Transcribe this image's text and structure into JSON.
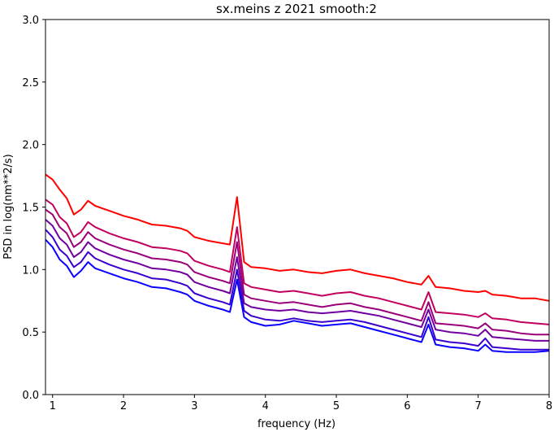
{
  "chart_data": {
    "type": "line",
    "title": "sx.meins z 2021 smooth:2",
    "xlabel": "frequency (Hz)",
    "ylabel": "PSD in log(nm**2/s)",
    "xlim": [
      0.9,
      8.0
    ],
    "ylim": [
      0.0,
      3.0
    ],
    "x_ticks": [
      1,
      2,
      3,
      4,
      5,
      6,
      7,
      8
    ],
    "y_ticks": [
      0.0,
      0.5,
      1.0,
      1.5,
      2.0,
      2.5,
      3.0
    ],
    "x_tick_labels": [
      "1",
      "2",
      "3",
      "4",
      "5",
      "6",
      "7",
      "8"
    ],
    "y_tick_labels": [
      "0.0",
      "0.5",
      "1.0",
      "1.5",
      "2.0",
      "2.5",
      "3.0"
    ],
    "grid": false,
    "legend": null,
    "x": [
      0.9,
      1.0,
      1.1,
      1.2,
      1.3,
      1.4,
      1.5,
      1.6,
      1.8,
      2.0,
      2.2,
      2.4,
      2.6,
      2.8,
      2.9,
      3.0,
      3.2,
      3.4,
      3.5,
      3.6,
      3.7,
      3.8,
      4.0,
      4.2,
      4.4,
      4.6,
      4.8,
      5.0,
      5.2,
      5.4,
      5.6,
      5.8,
      6.0,
      6.2,
      6.3,
      6.4,
      6.6,
      6.8,
      7.0,
      7.1,
      7.2,
      7.4,
      7.6,
      7.8,
      8.0
    ],
    "series": [
      {
        "color": "#ff0000",
        "values": [
          1.76,
          1.72,
          1.64,
          1.57,
          1.44,
          1.48,
          1.55,
          1.51,
          1.47,
          1.43,
          1.4,
          1.36,
          1.35,
          1.33,
          1.31,
          1.26,
          1.23,
          1.21,
          1.2,
          1.58,
          1.06,
          1.02,
          1.01,
          0.99,
          1.0,
          0.98,
          0.97,
          0.99,
          1.0,
          0.97,
          0.95,
          0.93,
          0.9,
          0.88,
          0.95,
          0.86,
          0.85,
          0.83,
          0.82,
          0.83,
          0.8,
          0.79,
          0.77,
          0.77,
          0.75
        ]
      },
      {
        "color": "#c2005e",
        "values": [
          1.56,
          1.52,
          1.42,
          1.37,
          1.26,
          1.3,
          1.38,
          1.34,
          1.29,
          1.25,
          1.22,
          1.18,
          1.17,
          1.15,
          1.13,
          1.07,
          1.03,
          1.0,
          0.98,
          1.34,
          0.89,
          0.86,
          0.84,
          0.82,
          0.83,
          0.81,
          0.79,
          0.81,
          0.82,
          0.79,
          0.77,
          0.74,
          0.71,
          0.68,
          0.82,
          0.66,
          0.65,
          0.64,
          0.62,
          0.65,
          0.61,
          0.6,
          0.58,
          0.57,
          0.56
        ]
      },
      {
        "color": "#99007a",
        "values": [
          1.48,
          1.44,
          1.34,
          1.29,
          1.18,
          1.22,
          1.3,
          1.25,
          1.2,
          1.16,
          1.13,
          1.09,
          1.08,
          1.06,
          1.04,
          0.98,
          0.94,
          0.91,
          0.89,
          1.22,
          0.8,
          0.77,
          0.75,
          0.73,
          0.74,
          0.72,
          0.7,
          0.72,
          0.73,
          0.7,
          0.68,
          0.65,
          0.62,
          0.59,
          0.74,
          0.57,
          0.56,
          0.55,
          0.53,
          0.57,
          0.52,
          0.51,
          0.49,
          0.48,
          0.48
        ]
      },
      {
        "color": "#7000a0",
        "values": [
          1.4,
          1.35,
          1.25,
          1.2,
          1.1,
          1.14,
          1.22,
          1.17,
          1.12,
          1.08,
          1.05,
          1.01,
          1.0,
          0.98,
          0.96,
          0.9,
          0.86,
          0.83,
          0.81,
          1.1,
          0.73,
          0.7,
          0.68,
          0.67,
          0.68,
          0.66,
          0.65,
          0.66,
          0.67,
          0.65,
          0.63,
          0.6,
          0.57,
          0.54,
          0.68,
          0.52,
          0.5,
          0.49,
          0.47,
          0.52,
          0.46,
          0.45,
          0.44,
          0.43,
          0.43
        ]
      },
      {
        "color": "#3a00cc",
        "values": [
          1.32,
          1.26,
          1.16,
          1.11,
          1.02,
          1.06,
          1.14,
          1.09,
          1.04,
          1.0,
          0.97,
          0.93,
          0.92,
          0.89,
          0.87,
          0.81,
          0.77,
          0.74,
          0.72,
          1.0,
          0.67,
          0.63,
          0.6,
          0.59,
          0.61,
          0.59,
          0.58,
          0.59,
          0.6,
          0.58,
          0.55,
          0.52,
          0.49,
          0.46,
          0.62,
          0.44,
          0.42,
          0.41,
          0.39,
          0.45,
          0.38,
          0.37,
          0.36,
          0.36,
          0.36
        ]
      },
      {
        "color": "#0a00ff",
        "values": [
          1.24,
          1.18,
          1.08,
          1.03,
          0.94,
          0.99,
          1.06,
          1.01,
          0.97,
          0.93,
          0.9,
          0.86,
          0.85,
          0.82,
          0.8,
          0.75,
          0.71,
          0.68,
          0.66,
          0.92,
          0.62,
          0.58,
          0.55,
          0.56,
          0.59,
          0.57,
          0.55,
          0.56,
          0.57,
          0.54,
          0.51,
          0.48,
          0.45,
          0.42,
          0.56,
          0.4,
          0.38,
          0.37,
          0.35,
          0.4,
          0.35,
          0.34,
          0.34,
          0.34,
          0.35
        ]
      }
    ]
  }
}
